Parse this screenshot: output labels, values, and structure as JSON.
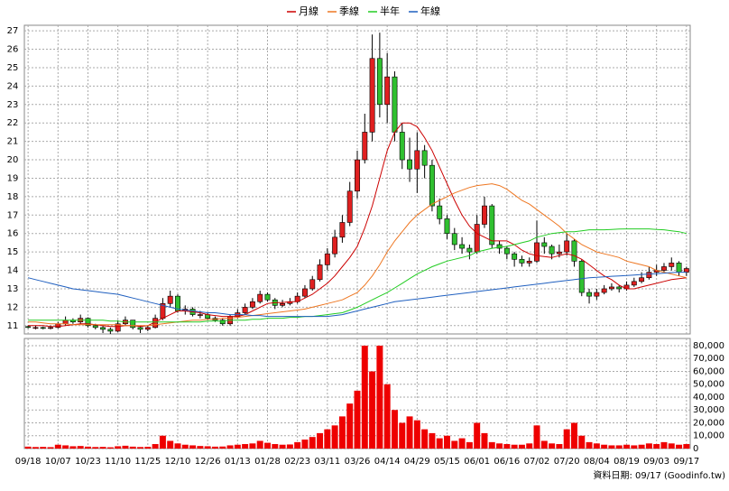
{
  "chart_data": {
    "type": "candlestick",
    "categories": [
      "09/18",
      null,
      null,
      null,
      "10/07",
      null,
      null,
      null,
      "10/23",
      null,
      null,
      null,
      "11/10",
      null,
      null,
      null,
      "11/25",
      null,
      null,
      null,
      "12/10",
      null,
      null,
      null,
      "12/26",
      null,
      null,
      null,
      "01/13",
      null,
      null,
      null,
      "01/28",
      null,
      null,
      null,
      "02/23",
      null,
      null,
      null,
      "03/11",
      null,
      null,
      null,
      "03/26",
      null,
      null,
      null,
      "04/14",
      null,
      null,
      null,
      "04/29",
      null,
      null,
      null,
      "05/15",
      null,
      null,
      null,
      "06/01",
      null,
      null,
      null,
      "06/16",
      null,
      null,
      null,
      "07/02",
      null,
      null,
      null,
      "07/20",
      null,
      null,
      null,
      "08/04",
      null,
      null,
      null,
      "08/19",
      null,
      null,
      null,
      "09/03",
      null,
      null,
      null,
      "09/17"
    ],
    "open": [
      10.95,
      10.9,
      10.9,
      10.85,
      10.9,
      11.1,
      11.3,
      11.2,
      11.4,
      11.0,
      10.9,
      10.8,
      10.7,
      11.1,
      11.3,
      10.9,
      10.8,
      10.9,
      11.4,
      12.2,
      12.6,
      11.8,
      11.9,
      11.6,
      11.6,
      11.4,
      11.3,
      11.1,
      11.5,
      11.7,
      12.0,
      12.3,
      12.7,
      12.4,
      12.1,
      12.2,
      12.3,
      12.6,
      13.0,
      13.5,
      14.3,
      14.9,
      15.8,
      16.6,
      18.3,
      20.0,
      21.5,
      25.5,
      23.0,
      24.5,
      21.5,
      20.0,
      19.5,
      20.5,
      19.7,
      17.5,
      16.8,
      16.0,
      15.4,
      15.2,
      15.0,
      16.5,
      17.5,
      15.4,
      15.2,
      14.9,
      14.6,
      14.4,
      14.5,
      15.5,
      15.3,
      14.9,
      15.0,
      15.6,
      14.5,
      12.8,
      12.6,
      12.8,
      13.0,
      13.1,
      13.0,
      13.2,
      13.4,
      13.6,
      13.9,
      14.0,
      14.2,
      14.4,
      13.9
    ],
    "high": [
      11.0,
      11.0,
      10.95,
      11.0,
      11.2,
      11.5,
      11.4,
      11.6,
      11.45,
      11.1,
      11.0,
      10.9,
      11.3,
      11.5,
      11.3,
      11.0,
      11.0,
      11.6,
      12.5,
      12.9,
      12.7,
      12.1,
      12.0,
      11.8,
      11.7,
      11.5,
      11.4,
      11.6,
      11.9,
      12.2,
      12.5,
      12.9,
      12.8,
      12.5,
      12.4,
      12.5,
      12.8,
      13.2,
      13.7,
      14.6,
      15.2,
      16.2,
      17.0,
      18.8,
      20.5,
      22.5,
      26.8,
      26.9,
      25.8,
      24.8,
      22.0,
      21.2,
      21.5,
      20.8,
      20.0,
      17.9,
      17.0,
      16.3,
      15.8,
      15.4,
      17.0,
      18.0,
      17.6,
      15.6,
      15.3,
      15.0,
      14.8,
      14.7,
      16.7,
      15.8,
      15.4,
      15.4,
      16.0,
      15.7,
      14.6,
      13.0,
      13.0,
      13.2,
      13.3,
      13.2,
      13.4,
      13.6,
      13.9,
      14.2,
      14.3,
      14.4,
      14.7,
      14.5,
      14.2
    ],
    "low": [
      10.85,
      10.8,
      10.8,
      10.8,
      10.85,
      11.0,
      11.1,
      11.1,
      10.9,
      10.8,
      10.6,
      10.55,
      10.65,
      11.0,
      10.8,
      10.6,
      10.7,
      10.85,
      11.3,
      12.0,
      11.7,
      11.6,
      11.5,
      11.4,
      11.3,
      11.2,
      11.0,
      11.0,
      11.4,
      11.6,
      11.9,
      12.2,
      12.3,
      11.9,
      12.0,
      12.1,
      12.2,
      12.5,
      12.9,
      13.4,
      14.0,
      14.7,
      15.5,
      16.4,
      17.9,
      19.8,
      21.0,
      22.3,
      22.0,
      21.0,
      19.5,
      18.8,
      18.2,
      19.0,
      17.2,
      16.5,
      15.7,
      15.1,
      14.9,
      14.6,
      14.9,
      16.3,
      15.2,
      14.9,
      14.6,
      14.2,
      14.2,
      14.2,
      14.4,
      14.9,
      14.6,
      14.7,
      14.8,
      14.2,
      12.6,
      12.2,
      12.4,
      12.7,
      12.9,
      12.8,
      12.9,
      13.1,
      13.3,
      13.5,
      13.7,
      13.9,
      14.0,
      13.7,
      13.7
    ],
    "close": [
      10.9,
      10.9,
      10.85,
      10.9,
      11.1,
      11.3,
      11.2,
      11.4,
      11.0,
      10.9,
      10.8,
      10.7,
      11.1,
      11.3,
      10.9,
      10.8,
      10.9,
      11.4,
      12.2,
      12.6,
      11.8,
      11.9,
      11.6,
      11.6,
      11.4,
      11.3,
      11.1,
      11.5,
      11.7,
      12.0,
      12.3,
      12.7,
      12.4,
      12.1,
      12.2,
      12.3,
      12.6,
      13.0,
      13.5,
      14.3,
      14.9,
      15.8,
      16.6,
      18.3,
      20.0,
      21.5,
      25.5,
      23.0,
      24.5,
      21.5,
      20.0,
      19.5,
      20.5,
      19.7,
      17.5,
      16.8,
      16.0,
      15.4,
      15.2,
      15.0,
      16.5,
      17.5,
      15.4,
      15.2,
      14.9,
      14.6,
      14.4,
      14.5,
      15.5,
      15.3,
      14.9,
      15.0,
      15.6,
      14.5,
      12.8,
      12.6,
      12.8,
      13.0,
      13.1,
      13.0,
      13.2,
      13.4,
      13.6,
      13.9,
      14.0,
      14.2,
      14.4,
      13.9,
      14.1
    ],
    "volume": [
      1500,
      1200,
      1300,
      1100,
      3000,
      2500,
      1800,
      2000,
      1500,
      1200,
      1300,
      1000,
      1800,
      2200,
      1500,
      1200,
      1400,
      3500,
      10000,
      6000,
      4000,
      3000,
      2500,
      2000,
      1800,
      1500,
      1600,
      2500,
      3000,
      3500,
      4000,
      6000,
      4500,
      3500,
      3000,
      3200,
      5000,
      7000,
      9000,
      12000,
      15000,
      18000,
      25000,
      35000,
      45000,
      80000,
      60000,
      80000,
      50000,
      30000,
      20000,
      25000,
      22000,
      15000,
      12000,
      8000,
      10000,
      6000,
      8000,
      5000,
      20000,
      12000,
      5000,
      4000,
      3500,
      3000,
      3000,
      4000,
      18000,
      6000,
      4000,
      3500,
      15000,
      20000,
      10000,
      5000,
      4000,
      3000,
      2500,
      2500,
      3000,
      2500,
      3000,
      4000,
      3500,
      5000,
      4000,
      3000,
      3500
    ],
    "up_color": "#e02020",
    "down_color": "#30c030",
    "volume_color": "#ee0000",
    "series": [
      {
        "name": "月線",
        "color": "#cc0000",
        "values": [
          11.0,
          11.0,
          11.0,
          10.95,
          10.95,
          11.0,
          11.05,
          11.1,
          11.1,
          11.05,
          11.0,
          10.95,
          10.95,
          11.0,
          11.0,
          10.95,
          11.0,
          11.2,
          11.4,
          11.6,
          11.8,
          11.8,
          11.75,
          11.7,
          11.6,
          11.55,
          11.5,
          11.5,
          11.5,
          11.6,
          11.8,
          12.0,
          12.2,
          12.25,
          12.25,
          12.3,
          12.3,
          12.5,
          12.7,
          13.0,
          13.3,
          13.7,
          14.2,
          14.7,
          15.3,
          16.3,
          17.5,
          19.0,
          20.5,
          21.5,
          22.0,
          22.0,
          21.8,
          21.2,
          20.5,
          19.6,
          18.7,
          17.8,
          17.0,
          16.4,
          16.0,
          15.8,
          15.6,
          15.6,
          15.6,
          15.4,
          15.1,
          14.9,
          14.8,
          14.75,
          14.7,
          14.8,
          14.9,
          14.8,
          14.6,
          14.3,
          14.0,
          13.7,
          13.5,
          13.2,
          13.0,
          13.0,
          13.1,
          13.2,
          13.3,
          13.4,
          13.5,
          13.55,
          13.6
        ]
      },
      {
        "name": "季線",
        "color": "#ee7722",
        "values": [
          11.2,
          11.2,
          11.15,
          11.1,
          11.1,
          11.1,
          11.05,
          11.05,
          11.05,
          11.05,
          11.05,
          11.05,
          11.05,
          11.0,
          11.0,
          11.0,
          11.0,
          11.05,
          11.1,
          11.15,
          11.2,
          11.25,
          11.3,
          11.3,
          11.35,
          11.35,
          11.4,
          11.4,
          11.45,
          11.5,
          11.55,
          11.6,
          11.65,
          11.7,
          11.75,
          11.8,
          11.85,
          11.9,
          12.0,
          12.1,
          12.2,
          12.3,
          12.4,
          12.6,
          12.8,
          13.2,
          13.7,
          14.3,
          15.0,
          15.6,
          16.1,
          16.6,
          17.0,
          17.3,
          17.6,
          17.8,
          18.0,
          18.2,
          18.35,
          18.5,
          18.6,
          18.65,
          18.7,
          18.6,
          18.4,
          18.1,
          17.8,
          17.6,
          17.3,
          17.0,
          16.7,
          16.4,
          16.0,
          15.7,
          15.4,
          15.2,
          15.0,
          14.9,
          14.8,
          14.7,
          14.5,
          14.4,
          14.3,
          14.2,
          14.0,
          13.9,
          13.8,
          13.7,
          13.6
        ]
      },
      {
        "name": "半年",
        "color": "#22cc22",
        "values": [
          11.3,
          11.3,
          11.3,
          11.3,
          11.3,
          11.3,
          11.3,
          11.3,
          11.3,
          11.3,
          11.3,
          11.25,
          11.25,
          11.2,
          11.2,
          11.2,
          11.2,
          11.2,
          11.2,
          11.2,
          11.2,
          11.2,
          11.2,
          11.2,
          11.25,
          11.25,
          11.25,
          11.3,
          11.3,
          11.3,
          11.35,
          11.35,
          11.4,
          11.4,
          11.4,
          11.45,
          11.45,
          11.5,
          11.5,
          11.55,
          11.6,
          11.65,
          11.7,
          11.85,
          12.0,
          12.2,
          12.4,
          12.6,
          12.8,
          13.05,
          13.3,
          13.55,
          13.8,
          14.0,
          14.2,
          14.35,
          14.5,
          14.6,
          14.7,
          14.8,
          15.0,
          15.1,
          15.2,
          15.25,
          15.3,
          15.4,
          15.5,
          15.6,
          15.8,
          15.9,
          16.0,
          16.05,
          16.1,
          16.1,
          16.15,
          16.2,
          16.2,
          16.2,
          16.22,
          16.24,
          16.25,
          16.25,
          16.25,
          16.25,
          16.22,
          16.2,
          16.15,
          16.1,
          16.0
        ]
      },
      {
        "name": "年線",
        "color": "#1f5fbf",
        "values": [
          13.6,
          13.5,
          13.4,
          13.3,
          13.2,
          13.1,
          13.0,
          12.95,
          12.9,
          12.85,
          12.8,
          12.75,
          12.7,
          12.6,
          12.5,
          12.4,
          12.3,
          12.2,
          12.1,
          12.0,
          11.9,
          11.85,
          11.8,
          11.75,
          11.7,
          11.7,
          11.65,
          11.6,
          11.6,
          11.6,
          11.55,
          11.55,
          11.5,
          11.5,
          11.5,
          11.5,
          11.5,
          11.5,
          11.5,
          11.5,
          11.5,
          11.55,
          11.6,
          11.7,
          11.8,
          11.9,
          12.0,
          12.1,
          12.2,
          12.3,
          12.35,
          12.4,
          12.45,
          12.5,
          12.55,
          12.6,
          12.65,
          12.7,
          12.75,
          12.8,
          12.85,
          12.9,
          12.95,
          13.0,
          13.05,
          13.1,
          13.15,
          13.2,
          13.25,
          13.3,
          13.35,
          13.4,
          13.45,
          13.5,
          13.55,
          13.6,
          13.62,
          13.65,
          13.68,
          13.7,
          13.72,
          13.75,
          13.78,
          13.8,
          13.82,
          13.85,
          13.88,
          13.9,
          13.9
        ]
      }
    ],
    "ylim": [
      10.55,
      27.3
    ],
    "yticks": [
      11,
      12,
      13,
      14,
      15,
      16,
      17,
      18,
      19,
      20,
      21,
      22,
      23,
      24,
      25,
      26,
      27
    ],
    "volume_ylim": [
      0,
      85600
    ],
    "volume_yticks": [
      0,
      {
        "value": 10000,
        "label": "10,000"
      },
      {
        "value": 20000,
        "label": "20,000"
      },
      {
        "value": 30000,
        "label": "30,000"
      },
      {
        "value": 40000,
        "label": "40,000"
      },
      {
        "value": 50000,
        "label": "50,000"
      },
      {
        "value": 60000,
        "label": "60,000"
      },
      {
        "value": 70000,
        "label": "70,000"
      },
      {
        "value": 80000,
        "label": "80,000"
      }
    ],
    "grid": true,
    "legend": "top",
    "footer": "資料日期: 09/17 (Goodinfo.tw)"
  }
}
